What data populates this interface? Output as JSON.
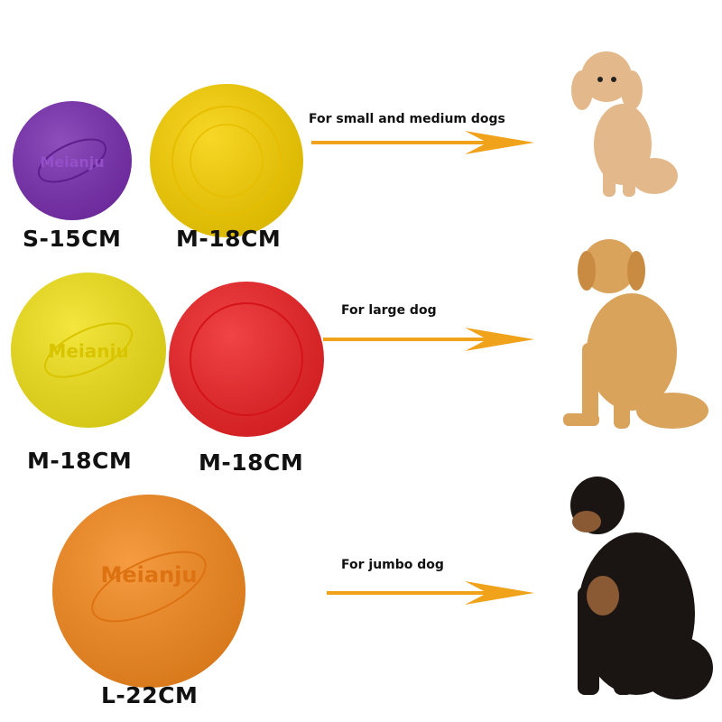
{
  "rows": [
    {
      "note": "For small and medium dogs",
      "discs": [
        {
          "label": "S-15CM",
          "color": "#7a2fb0",
          "logo": "Meianju"
        },
        {
          "label": "M-18CM",
          "color": "#f8d000"
        }
      ],
      "dog": "poodle"
    },
    {
      "note": "For large dog",
      "discs": [
        {
          "label": "M-18CM",
          "color": "#f2e21a",
          "logo": "Meianju"
        },
        {
          "label": "M-18CM",
          "color": "#ee2326"
        }
      ],
      "dog": "golden-retriever"
    },
    {
      "note": "For jumbo dog",
      "discs": [
        {
          "label": "L-22CM",
          "color": "#f58a1f",
          "logo": "Meianju"
        }
      ],
      "dog": "rottweiler"
    }
  ],
  "colors": {
    "arrow": "#f0a21a"
  }
}
